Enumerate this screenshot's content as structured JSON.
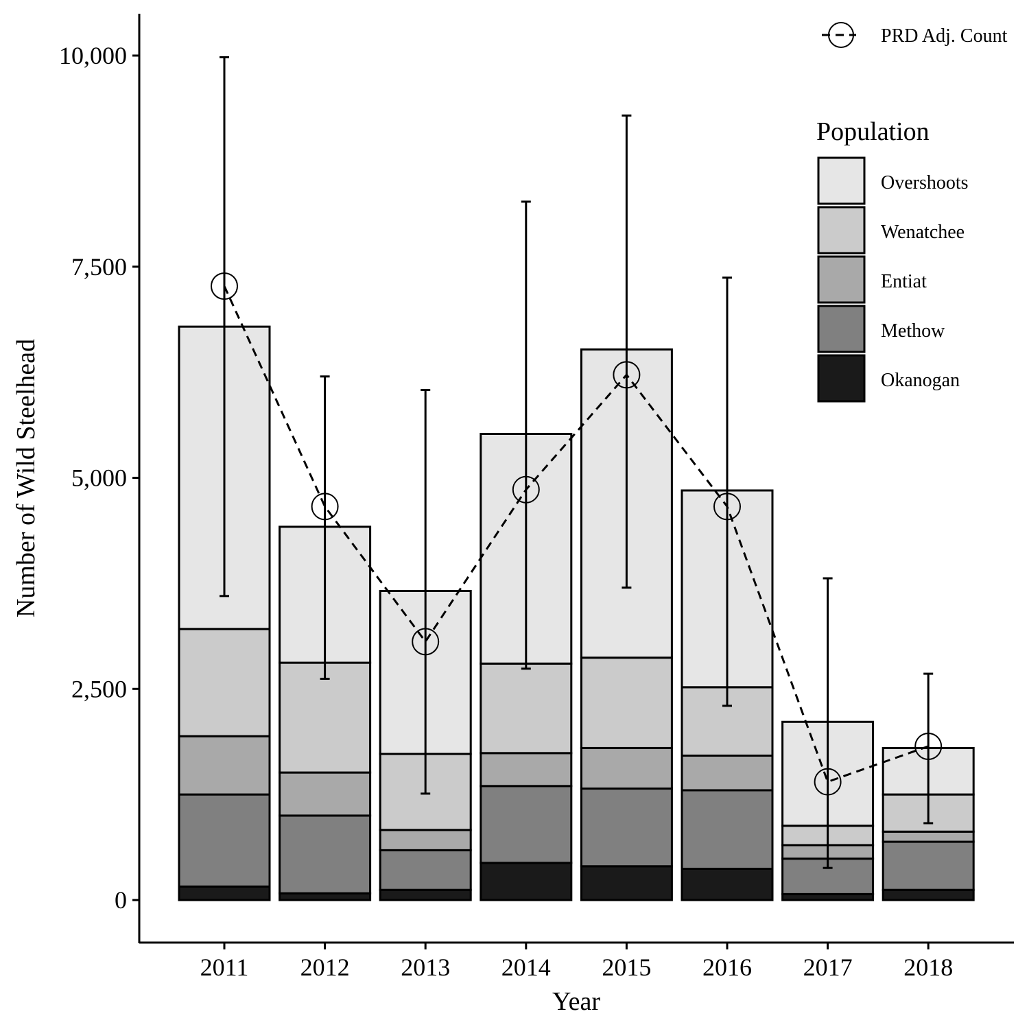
{
  "chart_data": {
    "type": "bar",
    "stacked": true,
    "xlabel": "Year",
    "ylabel": "Number of Wild Steelhead",
    "ylim": [
      -500,
      10500
    ],
    "yticks": [
      0,
      2500,
      5000,
      7500,
      10000
    ],
    "ytick_labels": [
      "0",
      "2,500",
      "5,000",
      "7,500",
      "10,000"
    ],
    "categories": [
      "2011",
      "2012",
      "2013",
      "2014",
      "2015",
      "2016",
      "2017",
      "2018"
    ],
    "legend_title": "Population",
    "series": [
      {
        "name": "Okanogan",
        "color": "#1a1a1a",
        "values": [
          160,
          80,
          120,
          440,
          400,
          370,
          70,
          120
        ]
      },
      {
        "name": "Methow",
        "color": "#808080",
        "values": [
          1090,
          920,
          470,
          910,
          920,
          930,
          420,
          570
        ]
      },
      {
        "name": "Entiat",
        "color": "#a9a9a9",
        "values": [
          690,
          510,
          240,
          390,
          480,
          410,
          160,
          120
        ]
      },
      {
        "name": "Wenatchee",
        "color": "#cbcbcb",
        "values": [
          1270,
          1300,
          900,
          1060,
          1070,
          810,
          230,
          440
        ]
      },
      {
        "name": "Overshoots",
        "color": "#e6e6e6",
        "values": [
          3580,
          1610,
          1930,
          2720,
          3650,
          2330,
          1230,
          550
        ]
      }
    ],
    "prd_adj_count": {
      "name": "PRD Adj. Count",
      "values": [
        7270,
        4660,
        3060,
        4860,
        6220,
        4660,
        1400,
        1820
      ],
      "error_lower": [
        3600,
        2620,
        1260,
        2740,
        3700,
        2300,
        380,
        910
      ],
      "error_upper": [
        9980,
        6200,
        6040,
        8270,
        9290,
        7370,
        3810,
        2680
      ]
    },
    "legend_position": "top-right",
    "grid": false
  }
}
